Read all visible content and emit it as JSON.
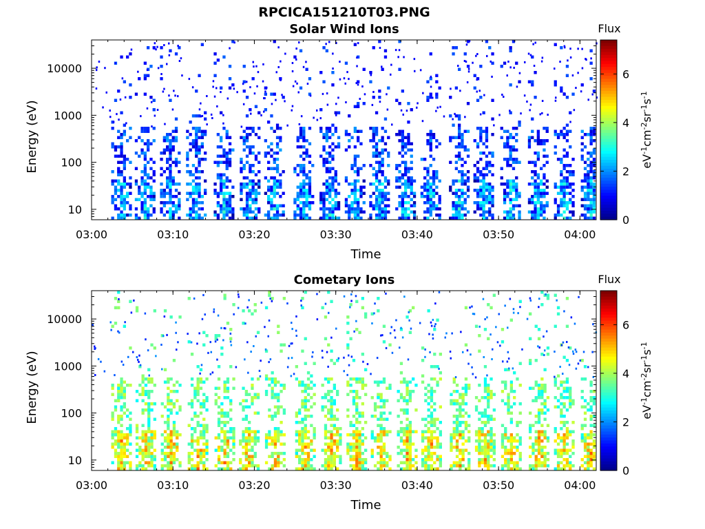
{
  "figure_title": "RPCICA151210T03.PNG",
  "colors": {
    "colormap": [
      "#00008f",
      "#0000ff",
      "#007fff",
      "#00ffff",
      "#7fff7f",
      "#ffff00",
      "#ff7f00",
      "#ff0000",
      "#7f0000"
    ]
  },
  "chart_data": [
    {
      "type": "heatmap",
      "title": "Solar Wind Ions",
      "xlabel": "Time",
      "ylabel": "Energy (eV)",
      "yscale": "log",
      "xlim": [
        "03:00",
        "04:02"
      ],
      "ylim": [
        6,
        40000
      ],
      "x_ticks": [
        "03:00",
        "03:10",
        "03:20",
        "03:30",
        "03:40",
        "03:50",
        "04:00"
      ],
      "y_ticks": [
        "10",
        "100",
        "1000",
        "10000"
      ],
      "colorbar": {
        "title": "Flux",
        "label": "eV-1cm-2sr-1s-1",
        "range": [
          0,
          7.4
        ],
        "ticks": [
          "0",
          "2",
          "4",
          "6"
        ]
      },
      "bursts_minutes": [
        3.5,
        6.4,
        9.5,
        12.7,
        16.1,
        19.3,
        22.3,
        25.9,
        29.1,
        32.2,
        35.2,
        38.4,
        41.5,
        45.0,
        48.0,
        51.3,
        54.7,
        57.9,
        61.2
      ],
      "low_energy_flux_level": 2.2,
      "high_energy_flux_level": 1.0
    },
    {
      "type": "heatmap",
      "title": "Cometary Ions",
      "xlabel": "Time",
      "ylabel": "Energy (eV)",
      "yscale": "log",
      "xlim": [
        "03:00",
        "04:02"
      ],
      "ylim": [
        6,
        40000
      ],
      "x_ticks": [
        "03:00",
        "03:10",
        "03:20",
        "03:30",
        "03:40",
        "03:50",
        "04:00"
      ],
      "y_ticks": [
        "10",
        "100",
        "1000",
        "10000"
      ],
      "colorbar": {
        "title": "Flux",
        "label": "eV-1cm-2sr-1s-1",
        "range": [
          0,
          7.4
        ],
        "ticks": [
          "0",
          "2",
          "4",
          "6"
        ]
      },
      "bursts_minutes": [
        3.5,
        6.5,
        9.6,
        12.9,
        16.2,
        19.2,
        22.4,
        26.1,
        29.3,
        32.4,
        35.4,
        38.6,
        41.6,
        45.1,
        48.2,
        51.4,
        54.8,
        57.9,
        61.2
      ],
      "low_energy_flux_level": 4.8,
      "high_energy_flux_level": 3.2
    }
  ]
}
